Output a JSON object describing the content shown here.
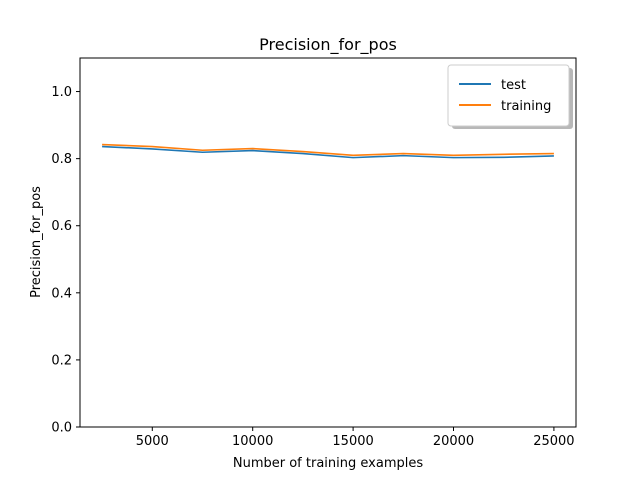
{
  "chart_data": {
    "type": "line",
    "title": "Precision_for_pos",
    "xlabel": "Number of training examples",
    "ylabel": "Precision_for_pos",
    "xlim": [
      1400,
      26100
    ],
    "ylim": [
      0.0,
      1.1
    ],
    "x_ticks": [
      5000,
      10000,
      15000,
      20000,
      25000
    ],
    "y_ticks": [
      "0.0",
      "0.2",
      "0.4",
      "0.6",
      "0.8",
      "1.0"
    ],
    "grid": false,
    "legend_position": "top-right",
    "x": [
      2500,
      5000,
      7500,
      10000,
      12500,
      15000,
      17500,
      20000,
      22500,
      25000
    ],
    "series": [
      {
        "name": "test",
        "color": "#1f77b4",
        "values": [
          0.836,
          0.829,
          0.819,
          0.824,
          0.815,
          0.803,
          0.809,
          0.803,
          0.804,
          0.808
        ]
      },
      {
        "name": "training",
        "color": "#ff7f0e",
        "values": [
          0.842,
          0.836,
          0.825,
          0.83,
          0.821,
          0.81,
          0.815,
          0.81,
          0.813,
          0.815
        ]
      }
    ]
  }
}
